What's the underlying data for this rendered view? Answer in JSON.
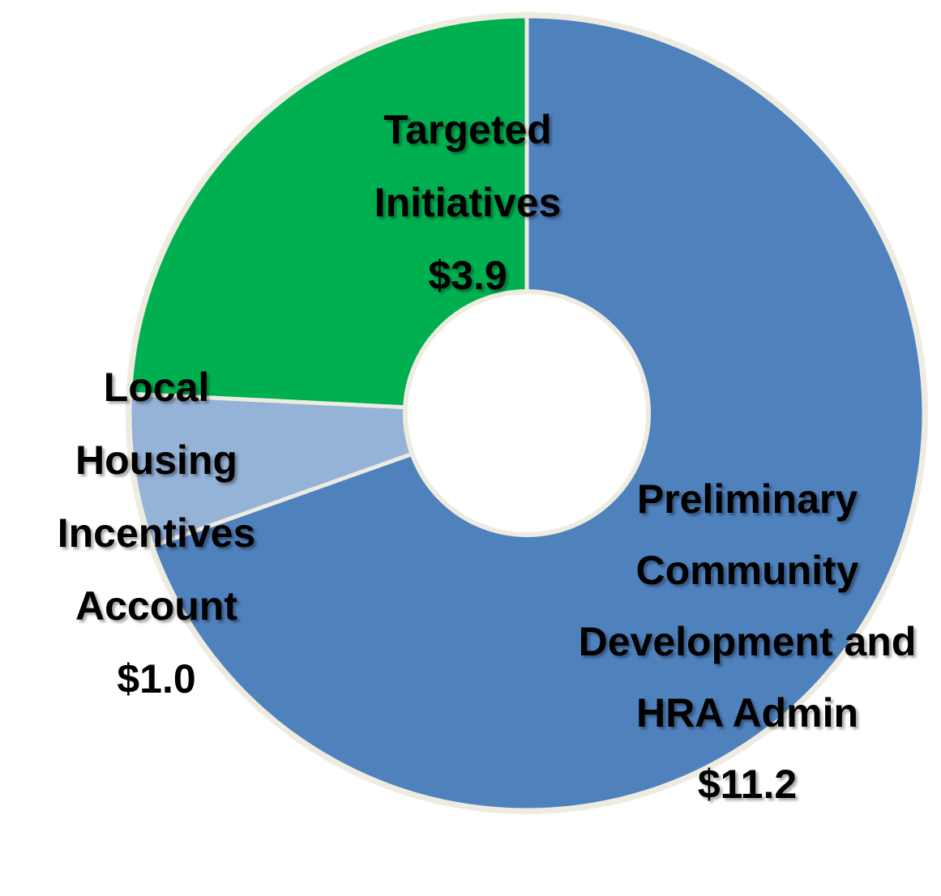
{
  "chart_data": {
    "type": "donut",
    "categories": [
      "Preliminary Community Development and HRA Admin",
      "Local Housing Incentives Account",
      "Targeted Initiatives"
    ],
    "values": [
      11.2,
      1.0,
      3.9
    ],
    "value_labels": [
      "$11.2",
      "$1.0",
      "$3.9"
    ],
    "colors": [
      "#4f81bd",
      "#95b3d7",
      "#00b050"
    ]
  }
}
